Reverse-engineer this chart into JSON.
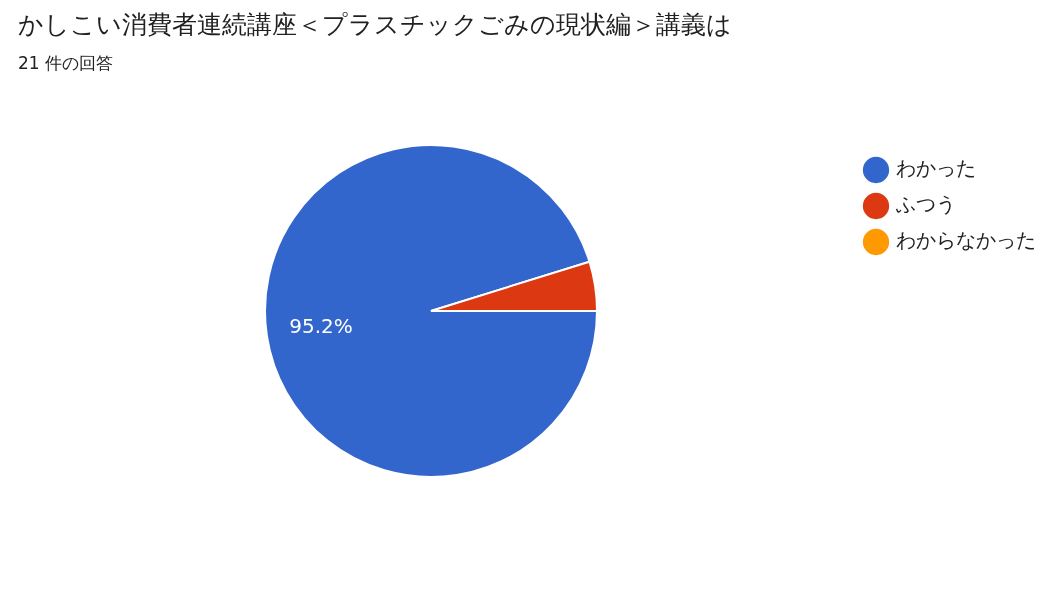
{
  "chart_data": {
    "type": "pie",
    "title": "かしこい消費者連続講座＜プラスチックごみの現状編＞講義は",
    "subtitle": "21 件の回答",
    "categories": [
      "わかった",
      "ふつう",
      "わからなかった"
    ],
    "values": [
      95.2,
      4.8,
      0
    ],
    "colors": [
      "#3366cc",
      "#dc3912",
      "#ff9900"
    ],
    "value_labels": [
      "95.2%",
      null,
      null
    ],
    "legend": "right"
  }
}
